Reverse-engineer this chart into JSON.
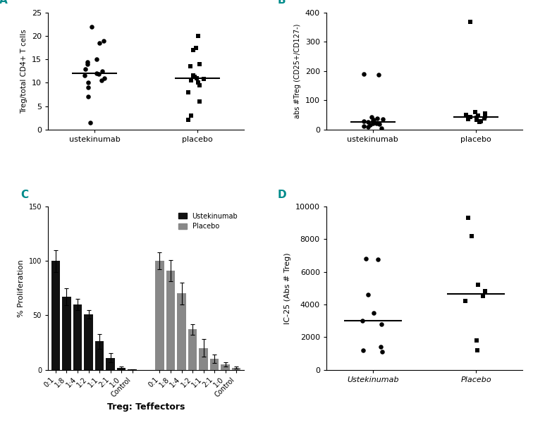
{
  "panel_A": {
    "label": "A",
    "ylabel": "Treg/total CD4+ T cells",
    "ylim": [
      0,
      25
    ],
    "yticks": [
      0,
      5,
      10,
      15,
      20,
      25
    ],
    "groups": [
      "ustekinumab",
      "placebo"
    ],
    "ustekinumab_circles": [
      22,
      19,
      18.5,
      15,
      14.5,
      14,
      13,
      12.5,
      12,
      11.8,
      11.5,
      11,
      10.5,
      10,
      9,
      7,
      1.5
    ],
    "placebo_squares": [
      20,
      17.5,
      17,
      14,
      13.5,
      11.5,
      11.2,
      11,
      10.8,
      10.5,
      10,
      9.5,
      8,
      6,
      3,
      2
    ],
    "ustekinumab_median": 12,
    "placebo_median": 11
  },
  "panel_B": {
    "label": "B",
    "ylabel": "abs #Treg (CD25+/CD127-)",
    "ylim": [
      0,
      400
    ],
    "yticks": [
      0,
      100,
      200,
      300,
      400
    ],
    "groups": [
      "ustekinumab",
      "placebo"
    ],
    "ustekinumab_circles": [
      190,
      188,
      42,
      38,
      35,
      32,
      30,
      28,
      25,
      22,
      20,
      18,
      15,
      12,
      8,
      5
    ],
    "placebo_squares": [
      370,
      60,
      55,
      50,
      48,
      45,
      43,
      40,
      38,
      35,
      32,
      28,
      25
    ],
    "ustekinumab_median": 26,
    "placebo_median": 42
  },
  "panel_C": {
    "label": "C",
    "ylabel": "% Proliferation",
    "xlabel": "Treg: Teffectors",
    "ylim": [
      0,
      150
    ],
    "yticks": [
      0,
      50,
      100,
      150
    ],
    "categories": [
      "0:1",
      "1:8",
      "1:4",
      "1:2",
      "1:1",
      "2:1",
      "1:0",
      "Control"
    ],
    "ustekinumab_values": [
      100,
      67,
      60,
      51,
      26,
      11,
      2,
      0.5
    ],
    "ustekinumab_errors": [
      10,
      8,
      5,
      4,
      7,
      4,
      1,
      0.2
    ],
    "placebo_values": [
      100,
      91,
      70,
      37,
      20,
      10,
      5,
      2
    ],
    "placebo_errors": [
      8,
      10,
      10,
      5,
      8,
      4,
      2,
      1
    ],
    "legend_labels": [
      "Ustekinumab",
      "Placebo"
    ],
    "bar_color_ust": "#111111",
    "bar_color_pla": "#888888"
  },
  "panel_D": {
    "label": "D",
    "ylabel": "IC-25 (Abs # Treg)",
    "ylim": [
      0,
      10000
    ],
    "yticks": [
      0,
      2000,
      4000,
      6000,
      8000,
      10000
    ],
    "groups": [
      "Ustekinumab",
      "Placebo"
    ],
    "ustekinumab_circles": [
      6800,
      6750,
      4600,
      3500,
      3000,
      2800,
      1400,
      1200,
      1100
    ],
    "placebo_squares": [
      9300,
      8200,
      5200,
      4800,
      4500,
      4200,
      1800,
      1200
    ],
    "ustekinumab_median": 3000,
    "placebo_median": 4650
  },
  "label_color": "#008B8B",
  "bg_color": "#ffffff"
}
